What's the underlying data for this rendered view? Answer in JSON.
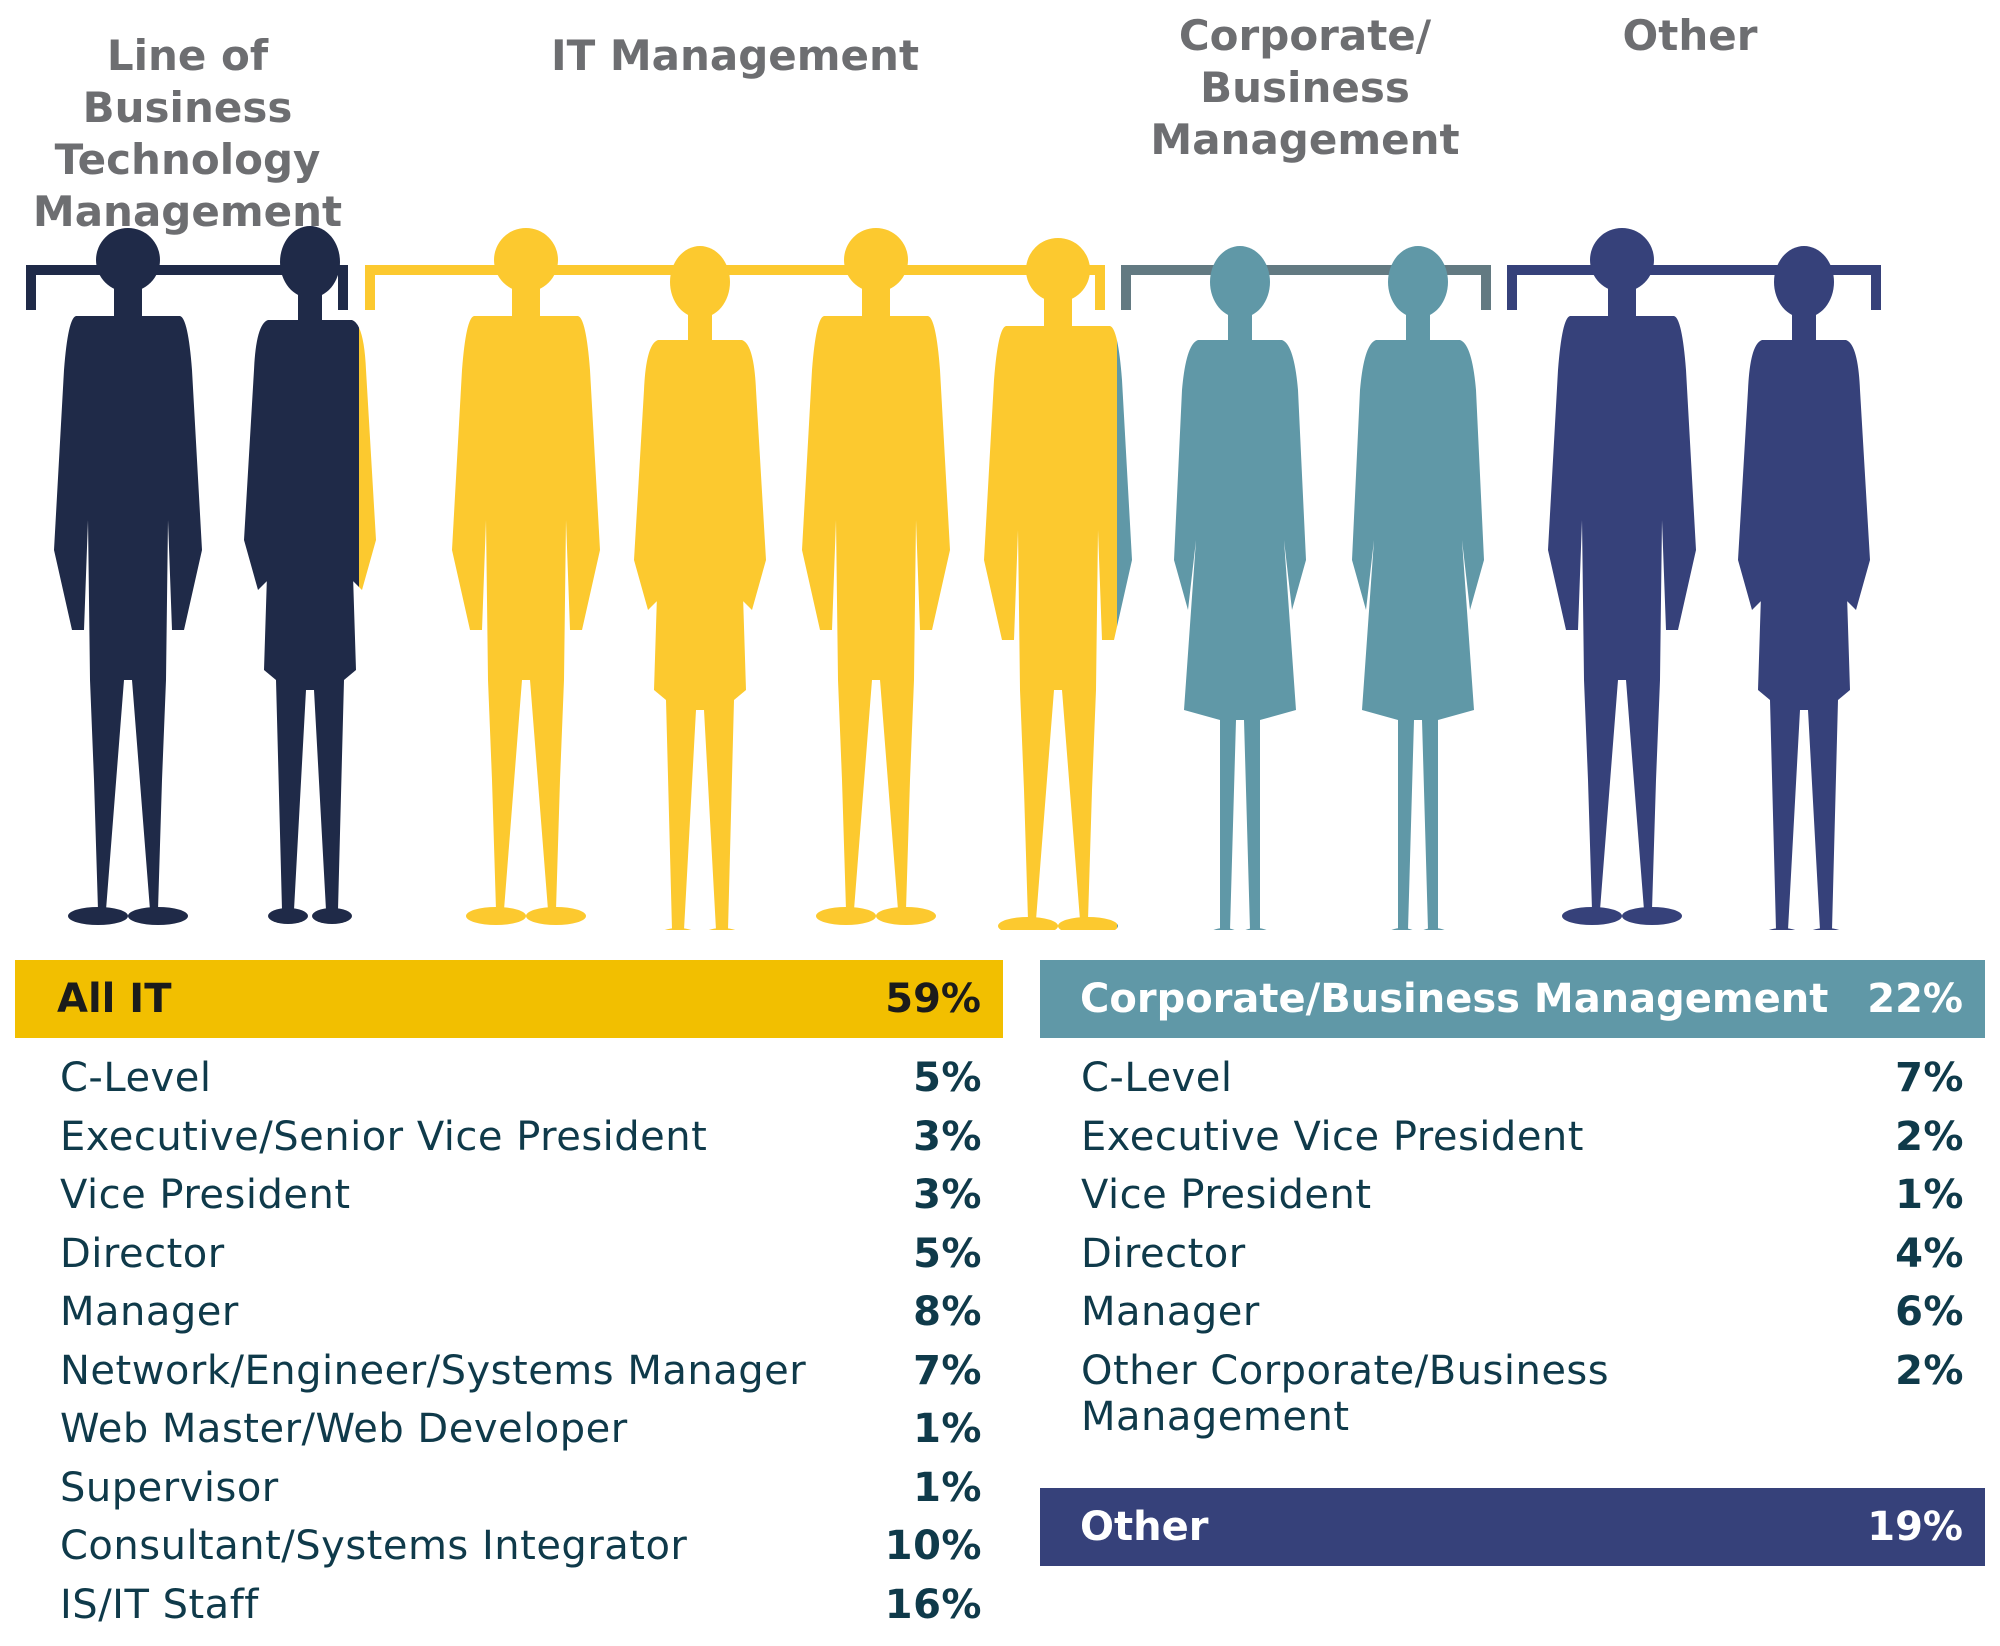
{
  "groups": [
    {
      "label": "Line of\nBusiness\nTechnology\nManagement",
      "color": "#1f2a48"
    },
    {
      "label": "IT Management",
      "color": "#fcc92f"
    },
    {
      "label": "Corporate/\nBusiness\nManagement",
      "color": "#6098a7"
    },
    {
      "label": "Other",
      "color": "#36417a"
    }
  ],
  "bracket_colors": [
    "#1f2a48",
    "#fcc92f",
    "#637a82",
    "#36417a"
  ],
  "it": {
    "title": "All IT",
    "total": "59%",
    "color": "#f2bf00",
    "rows": [
      {
        "label": "C-Level",
        "value": "5%"
      },
      {
        "label": "Executive/Senior Vice President",
        "value": "3%"
      },
      {
        "label": "Vice President",
        "value": "3%"
      },
      {
        "label": "Director",
        "value": "5%"
      },
      {
        "label": "Manager",
        "value": "8%"
      },
      {
        "label": "Network/Engineer/Systems Manager",
        "value": "7%"
      },
      {
        "label": "Web Master/Web Developer",
        "value": "1%"
      },
      {
        "label": "Supervisor",
        "value": "1%"
      },
      {
        "label": "Consultant/Systems Integrator",
        "value": "10%"
      },
      {
        "label": "IS/IT Staff",
        "value": "16%"
      }
    ]
  },
  "corp": {
    "title": "Corporate/Business Management",
    "total": "22%",
    "color": "#6098a7",
    "rows": [
      {
        "label": "C-Level",
        "value": "7%"
      },
      {
        "label": "Executive Vice President",
        "value": "2%"
      },
      {
        "label": "Vice President",
        "value": "1%"
      },
      {
        "label": "Director",
        "value": "4%"
      },
      {
        "label": "Manager",
        "value": "6%"
      },
      {
        "label": "Other Corporate/Business\nManagement",
        "value": "2%"
      }
    ]
  },
  "other": {
    "title": "Other",
    "total": "19%",
    "color": "#36417a"
  }
}
